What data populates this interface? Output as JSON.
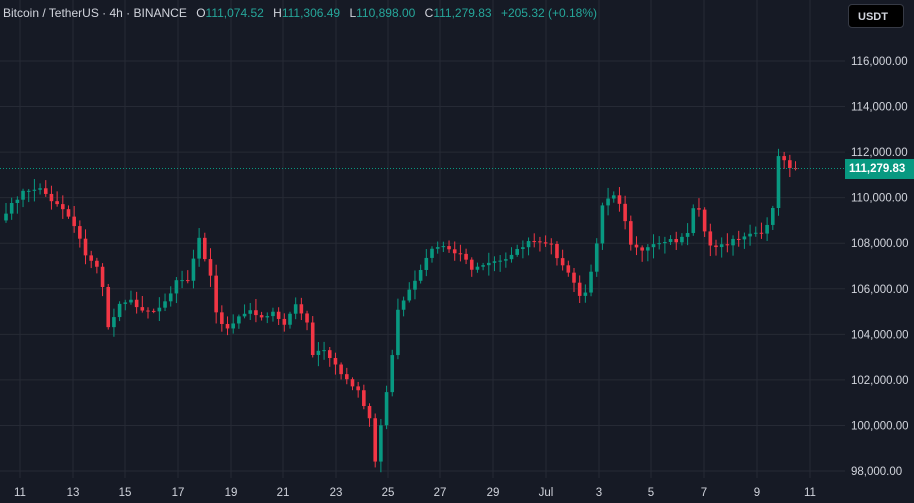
{
  "legend": {
    "symbol": "Bitcoin / TetherUS · 4h · BINANCE",
    "o_label": "O",
    "o_value": "111,074.52",
    "h_label": "H",
    "h_value": "111,306.49",
    "l_label": "L",
    "l_value": "110,898.00",
    "c_label": "C",
    "c_value": "111,279.83",
    "change": "+205.32 (+0.18%)"
  },
  "currency_button": "USDT",
  "last_price_label": "111,279.83",
  "colors": {
    "up": "#089981",
    "down": "#f23645",
    "background": "#161a25",
    "grid": "#262a35",
    "text": "#d1d4dc"
  },
  "chart_data": {
    "type": "candlestick",
    "title": "Bitcoin / TetherUS · 4h · BINANCE",
    "ylim": [
      97500,
      117500
    ],
    "y_ticks": [
      98000,
      100000,
      102000,
      104000,
      106000,
      108000,
      110000,
      112000,
      114000,
      116000
    ],
    "y_tick_labels": [
      "98,000.00",
      "100,000.00",
      "102,000.00",
      "104,000.00",
      "106,000.00",
      "108,000.00",
      "110,000.00",
      "112,000.00",
      "114,000.00",
      "116,000.00"
    ],
    "x_tick_labels": [
      "11",
      "13",
      "15",
      "17",
      "19",
      "21",
      "23",
      "25",
      "27",
      "29",
      "Jul",
      "3",
      "5",
      "7",
      "9",
      "11"
    ],
    "last_price": 111279.83,
    "grid": true,
    "close_path": [
      [
        0,
        109300
      ],
      [
        3,
        110200
      ],
      [
        6,
        110300
      ],
      [
        9,
        109800
      ],
      [
        12,
        108900
      ],
      [
        14,
        107500
      ],
      [
        16,
        106800
      ],
      [
        17,
        106000
      ],
      [
        18,
        104200
      ],
      [
        20,
        105200
      ],
      [
        22,
        105400
      ],
      [
        24,
        105200
      ],
      [
        26,
        105100
      ],
      [
        28,
        105600
      ],
      [
        30,
        106200
      ],
      [
        32,
        106300
      ],
      [
        34,
        108200
      ],
      [
        35,
        107200
      ],
      [
        36,
        106400
      ],
      [
        37,
        104800
      ],
      [
        39,
        104300
      ],
      [
        41,
        104800
      ],
      [
        43,
        105200
      ],
      [
        45,
        104600
      ],
      [
        47,
        104900
      ],
      [
        49,
        104400
      ],
      [
        51,
        105300
      ],
      [
        53,
        104600
      ],
      [
        54,
        103200
      ],
      [
        56,
        103400
      ],
      [
        58,
        102800
      ],
      [
        60,
        102000
      ],
      [
        62,
        101400
      ],
      [
        64,
        100300
      ],
      [
        65,
        98400
      ],
      [
        66,
        99900
      ],
      [
        67,
        101600
      ],
      [
        68,
        103200
      ],
      [
        69,
        105200
      ],
      [
        70,
        105600
      ],
      [
        72,
        106500
      ],
      [
        74,
        107500
      ],
      [
        76,
        107800
      ],
      [
        78,
        107700
      ],
      [
        80,
        107400
      ],
      [
        82,
        107000
      ],
      [
        84,
        107200
      ],
      [
        86,
        107300
      ],
      [
        88,
        107400
      ],
      [
        90,
        107600
      ],
      [
        92,
        108000
      ],
      [
        94,
        107900
      ],
      [
        96,
        107800
      ],
      [
        98,
        107200
      ],
      [
        100,
        106400
      ],
      [
        101,
        105700
      ],
      [
        102,
        106000
      ],
      [
        103,
        106900
      ],
      [
        104,
        107900
      ],
      [
        105,
        109500
      ],
      [
        106,
        109900
      ],
      [
        107,
        110000
      ],
      [
        108,
        109600
      ],
      [
        109,
        108800
      ],
      [
        110,
        107900
      ],
      [
        111,
        107700
      ],
      [
        113,
        108000
      ],
      [
        115,
        108100
      ],
      [
        117,
        108200
      ],
      [
        119,
        108100
      ],
      [
        120,
        108400
      ],
      [
        121,
        109400
      ],
      [
        122,
        109300
      ],
      [
        123,
        108500
      ],
      [
        124,
        107900
      ],
      [
        125,
        107700
      ],
      [
        126,
        107900
      ],
      [
        128,
        108200
      ],
      [
        130,
        108400
      ],
      [
        132,
        108500
      ],
      [
        134,
        108700
      ],
      [
        135,
        109400
      ],
      [
        136,
        111800
      ],
      [
        137,
        111500
      ],
      [
        138,
        111150
      ],
      [
        139,
        111280
      ]
    ]
  }
}
